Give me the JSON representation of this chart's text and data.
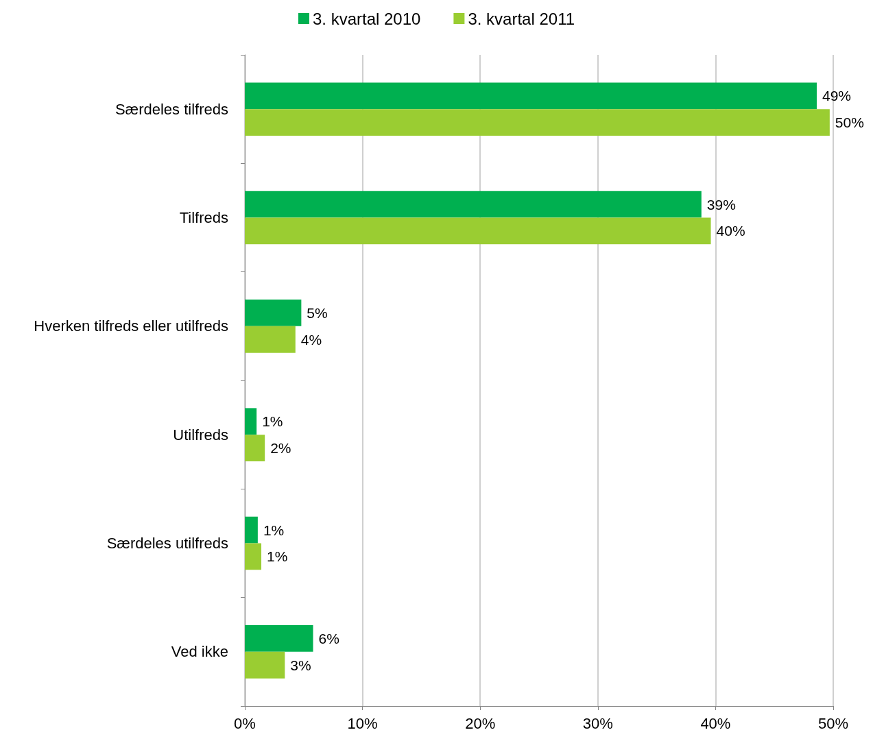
{
  "chart_data": {
    "type": "bar",
    "orientation": "horizontal",
    "categories": [
      "Særdeles tilfreds",
      "Tilfreds",
      "Hverken tilfreds eller utilfreds",
      "Utilfreds",
      "Særdeles utilfreds",
      "Ved ikke"
    ],
    "series": [
      {
        "name": "3. kvartal 2010",
        "color": "#00b050",
        "values": [
          48.6,
          38.8,
          4.8,
          1.0,
          1.1,
          5.8
        ],
        "value_labels": [
          "49%",
          "39%",
          "5%",
          "1%",
          "1%",
          "6%"
        ]
      },
      {
        "name": "3. kvartal 2011",
        "color": "#9acd32",
        "values": [
          49.7,
          39.6,
          4.3,
          1.7,
          1.4,
          3.4
        ],
        "value_labels": [
          "50%",
          "40%",
          "4%",
          "2%",
          "1%",
          "3%"
        ]
      }
    ],
    "xlim": [
      0,
      50
    ],
    "xticks": [
      {
        "value": 0,
        "label": "0%"
      },
      {
        "value": 10,
        "label": "10%"
      },
      {
        "value": 20,
        "label": "20%"
      },
      {
        "value": 30,
        "label": "30%"
      },
      {
        "value": 40,
        "label": "40%"
      },
      {
        "value": 50,
        "label": "50%"
      }
    ],
    "grid": "x",
    "legend": "top"
  }
}
